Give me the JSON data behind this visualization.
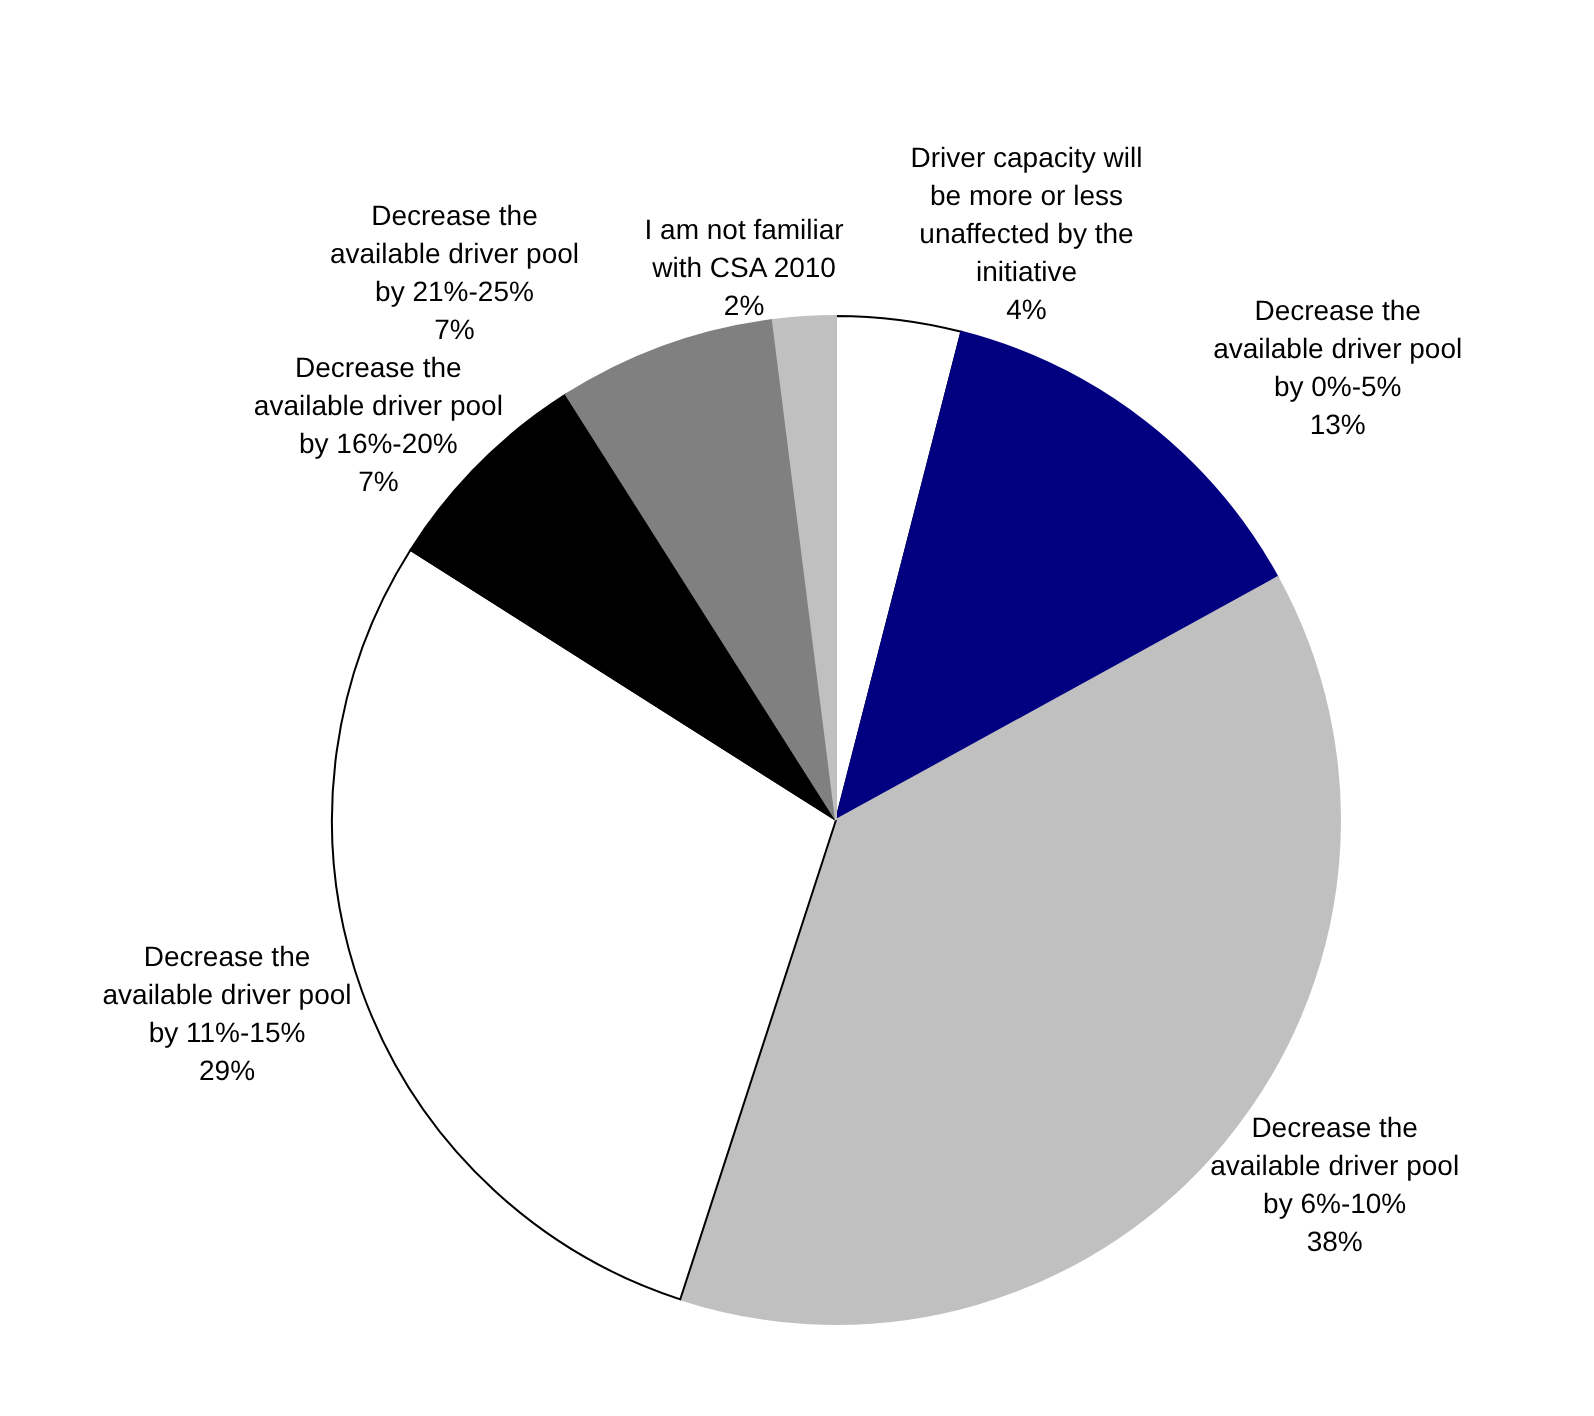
{
  "chart_data": {
    "type": "pie",
    "categories": [
      "Driver capacity will be more or less unaffected by the initiative",
      "Decrease the available driver pool by 0%-5%",
      "Decrease the available driver pool by 6%-10%",
      "Decrease the available driver pool by 11%-15%",
      "Decrease the available driver pool by 16%-20%",
      "Decrease the available driver pool by 21%-25%",
      "I am not familiar with CSA 2010"
    ],
    "values": [
      4,
      13,
      38,
      29,
      7,
      7,
      2
    ],
    "colors": [
      "#ffffff",
      "#000080",
      "#c0c0c0",
      "#ffffff",
      "#000000",
      "#808080",
      "#c0c0c0"
    ],
    "value_labels": [
      "4%",
      "13%",
      "38%",
      "29%",
      "7%",
      "7%",
      "2%"
    ]
  }
}
